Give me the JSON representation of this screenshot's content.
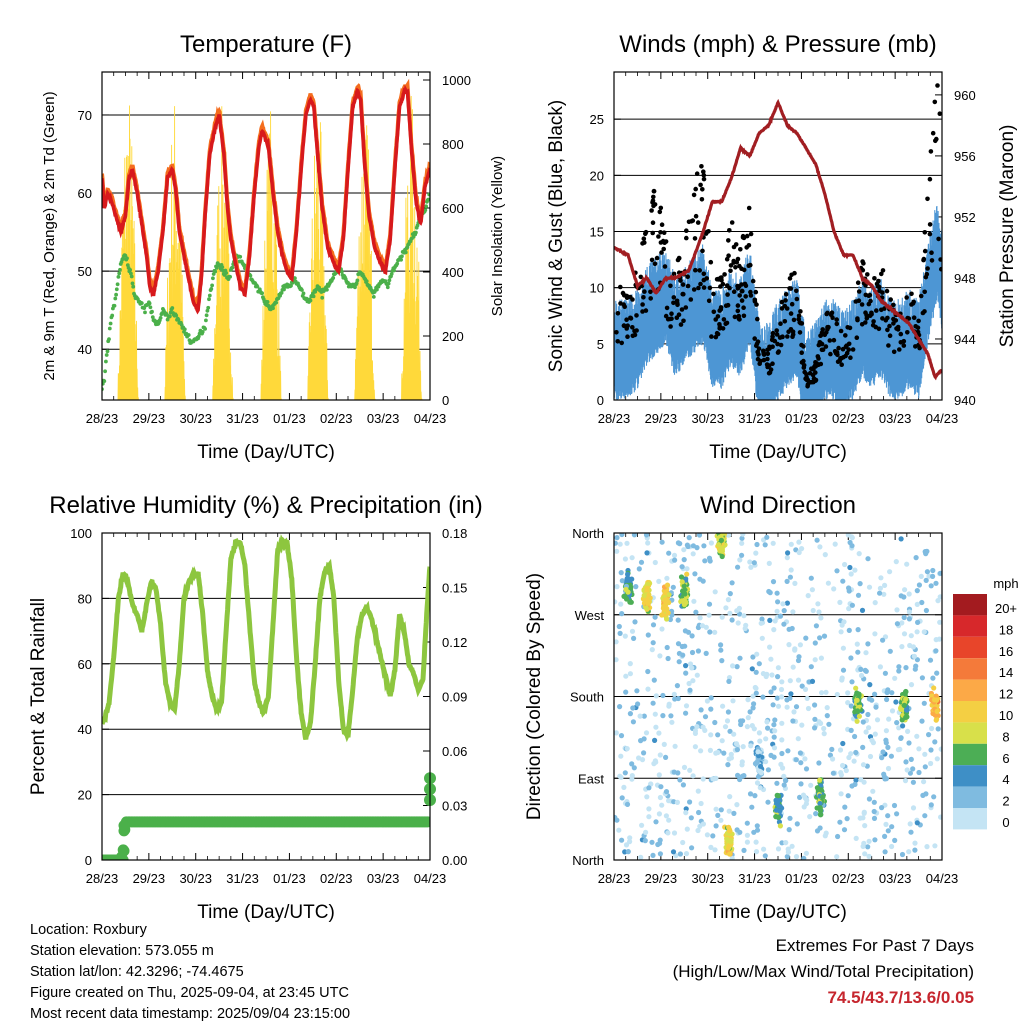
{
  "chart_data": [
    {
      "id": "temperature",
      "type": "line",
      "title": "Temperature (F)",
      "xlabel": "Time (Day/UTC)",
      "ylabel": "2m & 9m T (Red, Orange) & 2m Td (Green)",
      "ylabel_right": "Solar Insolation (Yellow)",
      "x_ticks": [
        "28/23",
        "29/23",
        "30/23",
        "31/23",
        "01/23",
        "02/23",
        "03/23",
        "04/23"
      ],
      "y_ticks": [
        "40",
        "50",
        "60",
        "70"
      ],
      "y_ticks_right": [
        "0",
        "200",
        "400",
        "600",
        "800",
        "1000"
      ],
      "ylim": [
        33.5,
        75.5
      ],
      "ylim_right": [
        0,
        1025
      ],
      "grid": "horizontal",
      "colors": {
        "temp_2m": "#d7191c",
        "temp_9m": "#f46d1e",
        "dewpoint": "#4bb04a",
        "solar": "#ffd93a"
      },
      "series": [
        {
          "name": "2m T",
          "x": [
            0,
            0.05,
            0.12,
            0.2,
            0.3,
            0.4,
            0.5,
            0.58,
            0.65,
            0.75,
            0.85,
            0.95,
            1.02,
            1.1,
            1.2,
            1.3,
            1.4,
            1.5,
            1.58,
            1.65,
            1.75,
            1.85,
            1.95,
            2.05,
            2.12,
            2.2,
            2.3,
            2.4,
            2.5,
            2.6,
            2.68,
            2.75,
            2.85,
            2.95,
            3.05,
            3.15,
            3.25,
            3.35,
            3.42,
            3.55,
            3.65,
            3.75,
            3.85,
            3.95,
            4.05,
            4.15,
            4.25,
            4.35,
            4.45,
            4.52,
            4.6,
            4.7,
            4.82,
            4.95,
            5.05,
            5.15,
            5.25,
            5.35,
            5.45,
            5.52,
            5.6,
            5.7,
            5.82,
            5.95,
            6.05,
            6.15,
            6.25,
            6.35,
            6.45,
            6.52,
            6.6,
            6.7,
            6.8,
            6.9,
            7.0
          ],
          "y": [
            62,
            58,
            60,
            59,
            57,
            55,
            57,
            62,
            63,
            60,
            56,
            52,
            48,
            47,
            50,
            55,
            62,
            63,
            60,
            55,
            52,
            49,
            46,
            45,
            49,
            57,
            65,
            68,
            70,
            65,
            58,
            54,
            51,
            48,
            47,
            52,
            60,
            66,
            68,
            66,
            60,
            55,
            52,
            50,
            49,
            55,
            63,
            70,
            72,
            71,
            65,
            58,
            53,
            51,
            50,
            54,
            63,
            71,
            73,
            72,
            64,
            57,
            53,
            51,
            50,
            54,
            63,
            71,
            73,
            73,
            66,
            59,
            56,
            61,
            63
          ]
        },
        {
          "name": "9m T",
          "x": [
            0,
            0.5,
            1.0,
            1.5,
            2.0,
            2.5,
            3.0,
            3.5,
            4.0,
            4.5,
            5.0,
            5.5,
            6.0,
            6.5,
            7.0
          ],
          "y": [
            61.5,
            57,
            48,
            62.5,
            46,
            69.5,
            48,
            67.5,
            50,
            71.5,
            51,
            72.5,
            52,
            73,
            63
          ]
        },
        {
          "name": "2m Td",
          "x": [
            0,
            0.05,
            0.1,
            0.2,
            0.3,
            0.4,
            0.5,
            0.6,
            0.7,
            0.8,
            0.9,
            1.0,
            1.1,
            1.2,
            1.3,
            1.4,
            1.5,
            1.6,
            1.7,
            1.8,
            1.9,
            2.0,
            2.1,
            2.2,
            2.3,
            2.4,
            2.5,
            2.6,
            2.7,
            2.8,
            2.9,
            3.0,
            3.1,
            3.2,
            3.3,
            3.4,
            3.5,
            3.6,
            3.7,
            3.8,
            3.9,
            4.0,
            4.1,
            4.2,
            4.3,
            4.4,
            4.5,
            4.6,
            4.7,
            4.8,
            4.9,
            5.0,
            5.1,
            5.2,
            5.3,
            5.4,
            5.5,
            5.6,
            5.7,
            5.8,
            5.9,
            6.0,
            6.1,
            6.2,
            6.3,
            6.4,
            6.5,
            6.6,
            6.7,
            6.8,
            6.9,
            7.0
          ],
          "y": [
            35,
            36,
            39,
            44,
            47,
            51,
            52,
            50,
            47,
            46,
            45,
            46,
            44,
            43,
            45,
            44,
            45,
            44,
            43,
            42,
            41,
            41,
            42,
            43,
            47,
            50,
            51,
            50,
            49,
            51,
            52,
            51,
            50,
            49,
            48,
            47,
            46,
            45,
            46,
            47,
            48,
            48,
            49,
            48,
            47,
            46,
            47,
            48,
            47,
            48,
            49,
            50,
            50,
            49,
            48,
            48,
            50,
            49,
            48,
            47,
            48,
            49,
            48,
            50,
            51,
            52,
            53,
            54,
            55,
            57,
            58,
            60
          ]
        },
        {
          "name": "Solar Insolation",
          "peaks_x": [
            0.55,
            1.55,
            2.57,
            3.6,
            4.6,
            5.6,
            6.6
          ],
          "peak_values": [
            1000,
            975,
            930,
            925,
            950,
            960,
            970
          ]
        }
      ]
    },
    {
      "id": "winds",
      "type": "line",
      "title": "Winds (mph) & Pressure (mb)",
      "xlabel": "Time (Day/UTC)",
      "ylabel": "Sonic Wind & Gust (Blue, Black)",
      "ylabel_right": "Station Pressure (Maroon)",
      "x_ticks": [
        "28/23",
        "29/23",
        "30/23",
        "31/23",
        "01/23",
        "02/23",
        "03/23",
        "04/23"
      ],
      "y_ticks": [
        "0",
        "5",
        "10",
        "15",
        "20",
        "25"
      ],
      "y_ticks_right": [
        "940",
        "944",
        "948",
        "952",
        "956",
        "960"
      ],
      "ylim": [
        0,
        29.2
      ],
      "ylim_right": [
        940,
        961.5
      ],
      "grid": "horizontal",
      "colors": {
        "wind": "#4d96d4",
        "gust": "#000000",
        "pressure": "#a11e22"
      },
      "series": [
        {
          "name": "Wind",
          "x": [
            0,
            0.3,
            0.5,
            0.7,
            0.9,
            1.1,
            1.3,
            1.5,
            1.7,
            1.9,
            2.1,
            2.3,
            2.5,
            2.7,
            2.9,
            3.1,
            3.3,
            3.5,
            3.7,
            3.9,
            4.1,
            4.3,
            4.5,
            4.7,
            4.9,
            5.1,
            5.3,
            5.5,
            5.7,
            5.9,
            6.1,
            6.3,
            6.5,
            6.7,
            6.9,
            7.0
          ],
          "y": [
            4,
            4,
            5,
            7,
            8,
            9,
            6,
            7,
            8,
            9,
            5,
            5,
            7,
            6,
            9,
            2,
            2,
            4,
            5,
            6,
            1,
            2,
            4,
            4,
            3,
            4,
            6,
            5,
            6,
            4,
            4,
            5,
            4,
            9,
            13,
            10
          ]
        },
        {
          "name": "Gust",
          "x": [
            0,
            0.3,
            0.5,
            0.7,
            0.9,
            1.1,
            1.3,
            1.5,
            1.7,
            1.9,
            2.1,
            2.3,
            2.5,
            2.7,
            2.9,
            3.1,
            3.3,
            3.5,
            3.7,
            3.9,
            4.1,
            4.3,
            4.5,
            4.7,
            4.9,
            5.1,
            5.3,
            5.5,
            5.7,
            5.9,
            6.1,
            6.3,
            6.5,
            6.7,
            6.9,
            7.0
          ],
          "y": [
            9,
            9,
            11,
            14,
            17,
            13,
            10,
            13,
            17,
            19,
            9,
            10,
            14,
            12,
            16,
            4,
            4,
            7,
            9,
            11,
            2,
            3,
            7,
            7,
            5,
            7,
            11,
            9,
            11,
            8,
            7,
            9,
            7,
            17,
            27,
            19
          ]
        },
        {
          "name": "Pressure",
          "x": [
            0,
            0.3,
            0.5,
            0.7,
            0.9,
            1.1,
            1.3,
            1.6,
            1.9,
            2.1,
            2.3,
            2.5,
            2.7,
            2.9,
            3.1,
            3.3,
            3.5,
            3.7,
            3.9,
            4.1,
            4.3,
            4.5,
            4.7,
            4.9,
            5.1,
            5.3,
            5.5,
            5.7,
            5.9,
            6.1,
            6.3,
            6.5,
            6.7,
            6.85,
            7.0
          ],
          "y": [
            950,
            949.5,
            947.5,
            948,
            947,
            948,
            948,
            948.5,
            951,
            953,
            953,
            954.5,
            956.5,
            956,
            957.5,
            958,
            959.5,
            958,
            957.5,
            956.5,
            955.5,
            953.5,
            951,
            949.5,
            949.5,
            948,
            947.5,
            946.5,
            946,
            945.5,
            945,
            944,
            943,
            941.5,
            942
          ]
        }
      ]
    },
    {
      "id": "humidity",
      "type": "line",
      "title": "Relative Humidity (%) & Precipitation (in)",
      "xlabel": "Time (Day/UTC)",
      "ylabel": "Percent & Total Rainfall",
      "x_ticks": [
        "28/23",
        "29/23",
        "30/23",
        "31/23",
        "01/23",
        "02/23",
        "03/23",
        "04/23"
      ],
      "y_ticks": [
        "0",
        "20",
        "40",
        "60",
        "80",
        "100"
      ],
      "y_ticks_right": [
        "0.00",
        "0.03",
        "0.06",
        "0.09",
        "0.12",
        "0.15",
        "0.18"
      ],
      "ylim": [
        0,
        100
      ],
      "ylim_right": [
        0,
        0.18
      ],
      "grid": "horizontal",
      "colors": {
        "rh": "#8dc63f",
        "precip": "#4bb04a"
      },
      "series": [
        {
          "name": "RH",
          "x": [
            0,
            0.05,
            0.15,
            0.25,
            0.35,
            0.45,
            0.55,
            0.65,
            0.75,
            0.85,
            0.95,
            1.05,
            1.15,
            1.25,
            1.35,
            1.45,
            1.55,
            1.65,
            1.75,
            1.85,
            1.95,
            2.05,
            2.15,
            2.25,
            2.35,
            2.45,
            2.55,
            2.65,
            2.75,
            2.85,
            2.95,
            3.05,
            3.15,
            3.25,
            3.35,
            3.45,
            3.55,
            3.65,
            3.75,
            3.85,
            3.95,
            4.05,
            4.15,
            4.25,
            4.35,
            4.45,
            4.55,
            4.65,
            4.75,
            4.85,
            4.95,
            5.05,
            5.15,
            5.25,
            5.35,
            5.45,
            5.55,
            5.65,
            5.75,
            5.85,
            5.95,
            6.05,
            6.15,
            6.25,
            6.35,
            6.45,
            6.55,
            6.65,
            6.75,
            6.85,
            6.95,
            7.0
          ],
          "y": [
            42,
            43,
            48,
            62,
            80,
            88,
            85,
            78,
            75,
            70,
            78,
            85,
            83,
            72,
            55,
            48,
            46,
            60,
            80,
            85,
            87,
            88,
            75,
            58,
            50,
            46,
            48,
            70,
            92,
            97,
            97,
            90,
            72,
            55,
            48,
            45,
            50,
            72,
            95,
            97,
            97,
            86,
            62,
            45,
            37,
            42,
            60,
            80,
            88,
            90,
            80,
            55,
            40,
            38,
            52,
            68,
            75,
            77,
            74,
            68,
            62,
            56,
            50,
            58,
            75,
            70,
            60,
            57,
            52,
            55,
            80,
            90
          ]
        },
        {
          "name": "Precipitation",
          "x": [
            0,
            0.4,
            0.45,
            0.5,
            1,
            2,
            3,
            4,
            5,
            6,
            6.95,
            7.0,
            7.0,
            7.0
          ],
          "y": [
            0,
            0,
            0.005,
            0.021,
            0.021,
            0.021,
            0.021,
            0.021,
            0.021,
            0.021,
            0.021,
            0.033,
            0.039,
            0.045
          ]
        }
      ]
    },
    {
      "id": "direction",
      "type": "scatter",
      "title": "Wind Direction",
      "xlabel": "Time (Day/UTC)",
      "ylabel": "Direction (Colored By Speed)",
      "x_ticks": [
        "28/23",
        "29/23",
        "30/23",
        "31/23",
        "01/23",
        "02/23",
        "03/23",
        "04/23"
      ],
      "y_ticks": [
        "North",
        "East",
        "South",
        "West",
        "North"
      ],
      "ylim": [
        0,
        360
      ],
      "grid": "horizontal",
      "legend_title": "mph",
      "legend_labels": [
        "20+",
        "18",
        "16",
        "14",
        "12",
        "10",
        "8",
        "6",
        "4",
        "2",
        "0"
      ],
      "legend_colors": [
        "#a31b1f",
        "#d7282b",
        "#e8452a",
        "#f47a3a",
        "#fca947",
        "#f4cf43",
        "#d8e04a",
        "#4cae55",
        "#3e8fc6",
        "#7fbbe0",
        "#c4e4f4"
      ],
      "clusters": [
        {
          "x": 0.3,
          "dir": 300,
          "speed": 5
        },
        {
          "x": 0.7,
          "dir": 290,
          "speed": 9
        },
        {
          "x": 1.1,
          "dir": 285,
          "speed": 10
        },
        {
          "x": 1.5,
          "dir": 295,
          "speed": 7
        },
        {
          "x": 2.3,
          "dir": 350,
          "speed": 8
        },
        {
          "x": 2.45,
          "dir": 20,
          "speed": 9
        },
        {
          "x": 3.1,
          "dir": 110,
          "speed": 2
        },
        {
          "x": 3.5,
          "dir": 60,
          "speed": 5
        },
        {
          "x": 4.4,
          "dir": 70,
          "speed": 6
        },
        {
          "x": 5.2,
          "dir": 170,
          "speed": 6
        },
        {
          "x": 6.2,
          "dir": 170,
          "speed": 6
        },
        {
          "x": 6.85,
          "dir": 170,
          "speed": 11
        }
      ]
    }
  ],
  "info": {
    "location": "Location: Roxbury",
    "elevation": "Station elevation: 573.055 m",
    "latlon": "Station lat/lon: 42.3296; -74.4675",
    "created": "Figure created on Thu, 2025-09-04, at 23:45 UTC",
    "timestamp": "Most recent data timestamp: 2025/09/04 23:15:00"
  },
  "extremes": {
    "line1": "Extremes For Past 7 Days",
    "line2": "(High/Low/Max Wind/Total Precipitation)",
    "values": "74.5/43.7/13.6/0.05"
  }
}
